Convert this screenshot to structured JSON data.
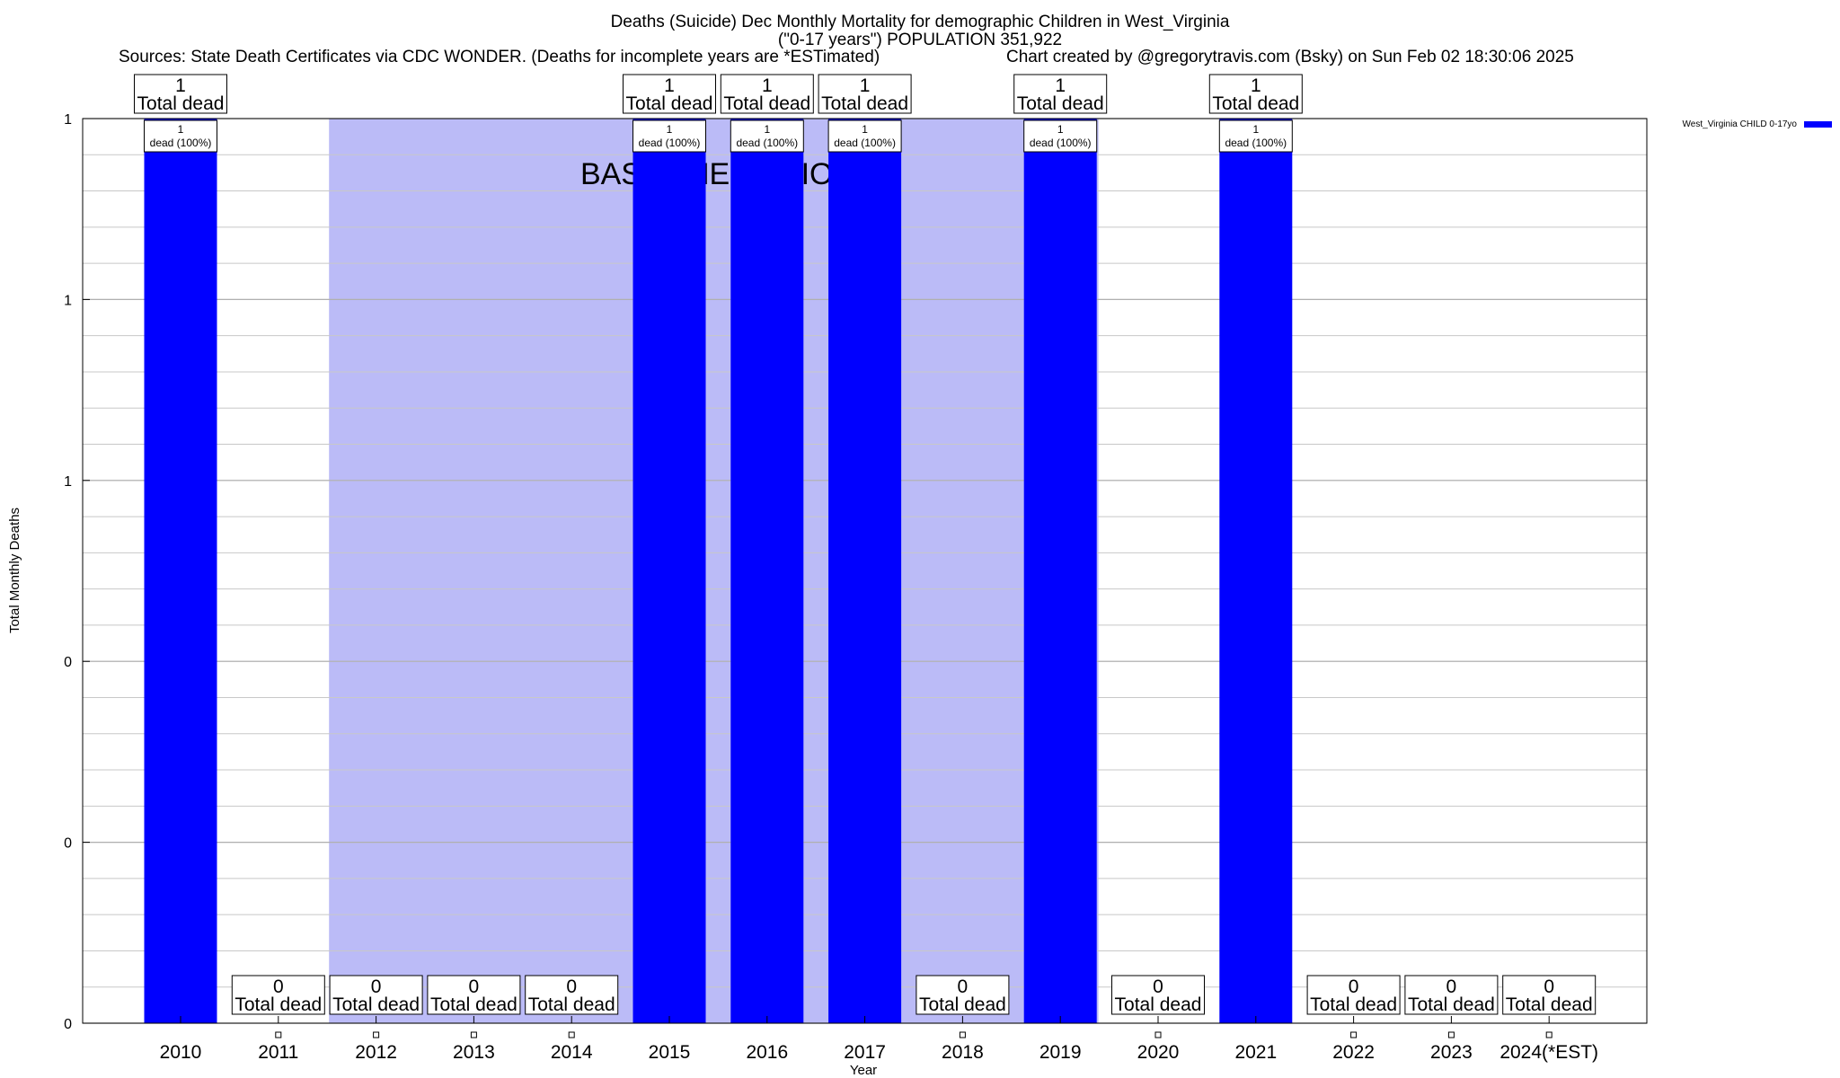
{
  "header": {
    "title_line1": "Deaths (Suicide) Dec Monthly Mortality for demographic Children in West_Virginia",
    "title_line2": "(\"0-17 years\") POPULATION 351,922",
    "sources": "Sources: State Death Certificates via CDC WONDER. (Deaths for incomplete years are *ESTimated)",
    "credit": "Chart created by @gregorytravis.com (Bsky) on Sun Feb 02 18:30:06 2025"
  },
  "chart_data": {
    "type": "bar",
    "xlabel": "Year",
    "ylabel": "Total Monthly Deaths",
    "ylim": [
      0,
      1
    ],
    "y_tick_labels": [
      "0",
      "0",
      "0",
      "1",
      "1",
      "1"
    ],
    "grid": true,
    "legend_position": "top-right",
    "categories": [
      "2010",
      "2011",
      "2012",
      "2013",
      "2014",
      "2015",
      "2016",
      "2017",
      "2018",
      "2019",
      "2020",
      "2021",
      "2022",
      "2023",
      "2024(*EST)"
    ],
    "series": [
      {
        "name": "West_Virginia CHILD 0-17yo",
        "color": "#0000ff",
        "values": [
          1,
          0,
          0,
          0,
          0,
          1,
          1,
          1,
          0,
          1,
          0,
          1,
          0,
          0,
          0
        ]
      }
    ],
    "top_labels": [
      "1\nTotal dead",
      "0\nTotal dead",
      "0\nTotal dead",
      "0\nTotal dead",
      "0\nTotal dead",
      "1\nTotal dead",
      "1\nTotal dead",
      "1\nTotal dead",
      "0\nTotal dead",
      "1\nTotal dead",
      "0\nTotal dead",
      "1\nTotal dead",
      "0\nTotal dead",
      "0\nTotal dead",
      "0\nTotal dead"
    ],
    "inner_labels": [
      "1\ndead (100%)",
      "",
      "",
      "",
      "",
      "1\ndead (100%)",
      "1\ndead (100%)",
      "1\ndead (100%)",
      "",
      "1\ndead (100%)",
      "",
      "1\ndead (100%)",
      "",
      "",
      ""
    ],
    "baseline_period": {
      "label": "BASELINE PERIOD",
      "start": "2012",
      "end": "2019",
      "color": "#bbbbf7"
    }
  }
}
